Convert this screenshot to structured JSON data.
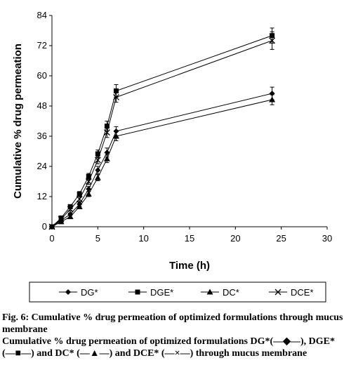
{
  "chart_data": {
    "type": "line",
    "xlabel": "Time (h)",
    "ylabel": "Cumulative % drug permeation",
    "xlim": [
      0,
      30
    ],
    "ylim": [
      0,
      84
    ],
    "xticks": [
      0,
      5,
      10,
      15,
      20,
      25,
      30
    ],
    "yticks": [
      0,
      12,
      24,
      36,
      48,
      60,
      72,
      84
    ],
    "grid": false,
    "legend_position": "bottom",
    "x": [
      0,
      1,
      2,
      3,
      4,
      5,
      6,
      7,
      24
    ],
    "series": [
      {
        "name": "DG*",
        "marker": "diamond",
        "values": [
          0,
          2.5,
          5,
          9,
          15,
          22.5,
          29.5,
          38,
          53
        ],
        "error": [
          0,
          0.5,
          0.5,
          0.8,
          1.0,
          1.5,
          1.8,
          1.8,
          2.5
        ]
      },
      {
        "name": "DGE*",
        "marker": "square",
        "values": [
          0,
          3.5,
          8,
          13,
          20,
          29,
          40,
          54,
          76
        ],
        "error": [
          0,
          0.5,
          0.8,
          1.0,
          1.2,
          1.5,
          2.0,
          2.5,
          3.0
        ]
      },
      {
        "name": "DC*",
        "marker": "triangle",
        "values": [
          0,
          2,
          4,
          8,
          13,
          19.5,
          27,
          36,
          50.5
        ],
        "error": [
          0,
          0.5,
          0.5,
          0.8,
          1.0,
          1.2,
          1.5,
          1.8,
          2.0
        ]
      },
      {
        "name": "DCE*",
        "marker": "x",
        "values": [
          0,
          3,
          7,
          11,
          18,
          26.5,
          37.5,
          51.5,
          74
        ],
        "error": [
          0,
          0.5,
          0.8,
          1.0,
          1.2,
          1.5,
          2.0,
          2.0,
          3.5
        ]
      }
    ]
  },
  "caption": {
    "line1": "Fig. 6: Cumulative % drug permeation of optimized formulations through mucus membrane",
    "line2_prefix": "Cumulative % drug permeation of optimized formulations DG*(",
    "dg_symbol": "—◆—",
    "sep_dge": "), DGE* (",
    "dge_symbol": "—■—",
    "sep_dc": ") and DC* (",
    "dc_symbol": "—▲—",
    "sep_dce": ") and DCE* (",
    "dce_symbol": "—×—",
    "line2_suffix": ") through mucus membrane"
  }
}
